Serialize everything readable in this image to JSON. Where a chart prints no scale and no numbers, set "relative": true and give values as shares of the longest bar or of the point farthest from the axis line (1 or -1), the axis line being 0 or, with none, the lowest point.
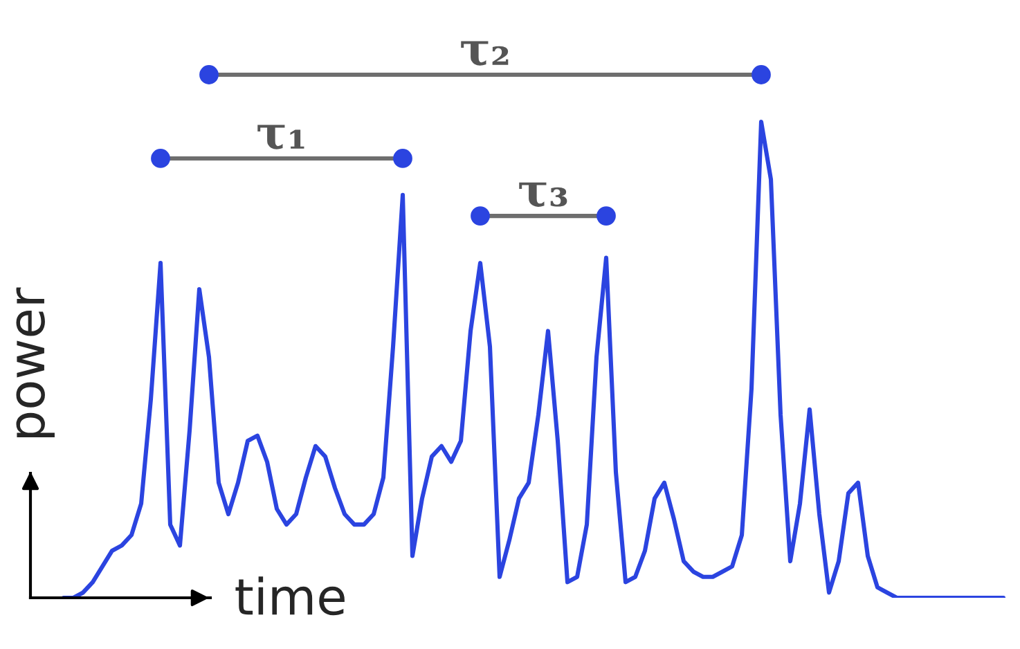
{
  "chart_data": {
    "type": "line",
    "relative": true,
    "xlabel": "time",
    "ylabel": "power",
    "legend": false,
    "categories": [
      null,
      null,
      null,
      null,
      null,
      null,
      null,
      null,
      null,
      null,
      null,
      null,
      null,
      null,
      null,
      null,
      null,
      null,
      null,
      null,
      null,
      null,
      null,
      null,
      null,
      null,
      null,
      null,
      null,
      null,
      null,
      null,
      null,
      null,
      null,
      null,
      null,
      null,
      null,
      null,
      null,
      null,
      null,
      null,
      null,
      null,
      null,
      null,
      null,
      null,
      null,
      null,
      null,
      null,
      null,
      null,
      null,
      null,
      null,
      null,
      null,
      null,
      null,
      null,
      null,
      null,
      null,
      null,
      null,
      null,
      null,
      null,
      null,
      null,
      null,
      null,
      null,
      null,
      null,
      null,
      null,
      null,
      null,
      null,
      null,
      null,
      null,
      null,
      null,
      null,
      null,
      null,
      null,
      null,
      null,
      null,
      null,
      null
    ],
    "series": [
      {
        "color": "#2b44e0",
        "marker": "none",
        "values": [
          0,
          0,
          0.01,
          0.03,
          0.06,
          0.09,
          0.1,
          0.12,
          0.18,
          0.38,
          0.64,
          0.14,
          0.1,
          0.32,
          0.59,
          0.46,
          0.22,
          0.16,
          0.22,
          0.3,
          0.31,
          0.26,
          0.17,
          0.14,
          0.16,
          0.23,
          0.29,
          0.27,
          0.21,
          0.16,
          0.14,
          0.14,
          0.16,
          0.23,
          0.48,
          0.77,
          0.08,
          0.19,
          0.27,
          0.29,
          0.26,
          0.3,
          0.51,
          0.64,
          0.48,
          0.04,
          0.11,
          0.19,
          0.22,
          0.35,
          0.51,
          0.3,
          0.03,
          0.04,
          0.14,
          0.46,
          0.65,
          0.24,
          0.03,
          0.04,
          0.09,
          0.19,
          0.22,
          0.15,
          0.07,
          0.05,
          0.04,
          0.04,
          0.05,
          0.06,
          0.12,
          0.4,
          0.91,
          0.8,
          0.35,
          0.07,
          0.18,
          0.36,
          0.16,
          0.01,
          0.07,
          0.2,
          0.22,
          0.08,
          0.02,
          0.01,
          0,
          0,
          0,
          0,
          0,
          0,
          0,
          0,
          0,
          0,
          0,
          0
        ]
      },
      {
        "name": "τ₁",
        "color": "#6e6e6e",
        "marker": "circle",
        "values": [
          null,
          null,
          null,
          null,
          null,
          null,
          null,
          null,
          null,
          null,
          0.84,
          null,
          null,
          null,
          null,
          null,
          null,
          null,
          null,
          null,
          null,
          null,
          null,
          null,
          null,
          null,
          null,
          null,
          null,
          null,
          null,
          null,
          null,
          null,
          null,
          0.84,
          null,
          null,
          null,
          null,
          null,
          null,
          null,
          null,
          null,
          null,
          null,
          null,
          null,
          null,
          null,
          null,
          null,
          null,
          null,
          null,
          null,
          null,
          null,
          null,
          null,
          null,
          null,
          null,
          null,
          null,
          null,
          null,
          null,
          null,
          null,
          null,
          null,
          null,
          null,
          null,
          null,
          null,
          null,
          null,
          null,
          null,
          null,
          null,
          null,
          null,
          null,
          null,
          null,
          null,
          null,
          null,
          null,
          null,
          null,
          null,
          null,
          null
        ]
      },
      {
        "name": "τ₂",
        "color": "#6e6e6e",
        "marker": "circle",
        "values": [
          null,
          null,
          null,
          null,
          null,
          null,
          null,
          null,
          null,
          null,
          null,
          null,
          null,
          null,
          null,
          1.0,
          null,
          null,
          null,
          null,
          null,
          null,
          null,
          null,
          null,
          null,
          null,
          null,
          null,
          null,
          null,
          null,
          null,
          null,
          null,
          null,
          null,
          null,
          null,
          null,
          null,
          null,
          null,
          null,
          null,
          null,
          null,
          null,
          null,
          null,
          null,
          null,
          null,
          null,
          null,
          null,
          null,
          null,
          null,
          null,
          null,
          null,
          null,
          null,
          null,
          null,
          null,
          null,
          null,
          null,
          null,
          null,
          1.0,
          null,
          null,
          null,
          null,
          null,
          null,
          null,
          null,
          null,
          null,
          null,
          null,
          null,
          null,
          null,
          null,
          null,
          null,
          null,
          null,
          null,
          null,
          null,
          null,
          null
        ]
      },
      {
        "name": "τ₃",
        "color": "#6e6e6e",
        "marker": "circle",
        "values": [
          null,
          null,
          null,
          null,
          null,
          null,
          null,
          null,
          null,
          null,
          null,
          null,
          null,
          null,
          null,
          null,
          null,
          null,
          null,
          null,
          null,
          null,
          null,
          null,
          null,
          null,
          null,
          null,
          null,
          null,
          null,
          null,
          null,
          null,
          null,
          null,
          null,
          null,
          null,
          null,
          null,
          null,
          null,
          0.73,
          null,
          null,
          null,
          null,
          null,
          null,
          null,
          null,
          null,
          null,
          null,
          null,
          0.73,
          null,
          null,
          null,
          null,
          null,
          null,
          null,
          null,
          null,
          null,
          null,
          null,
          null,
          null,
          null,
          null,
          null,
          null,
          null,
          null,
          null,
          null,
          null,
          null,
          null,
          null,
          null,
          null,
          null,
          null,
          null,
          null,
          null,
          null,
          null,
          null,
          null,
          null,
          null,
          null,
          null
        ]
      }
    ]
  }
}
